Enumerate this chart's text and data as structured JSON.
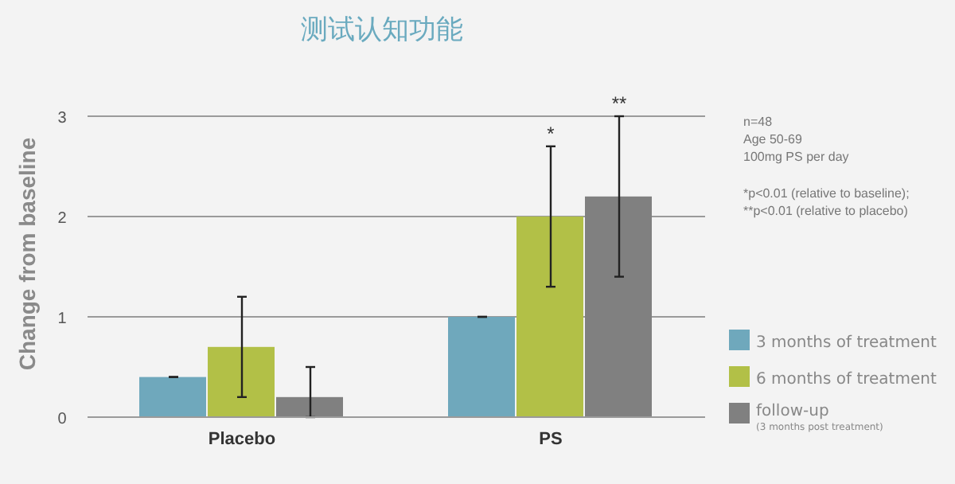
{
  "chart_data": {
    "type": "bar",
    "title": "测试认知功能",
    "ylabel": "Change from baseline",
    "categories": [
      "Placebo",
      "PS"
    ],
    "series": [
      {
        "name": "3 months of treatment",
        "color": "#6fa8bc",
        "values": [
          0.4,
          1.0
        ],
        "errors": [
          0,
          0
        ]
      },
      {
        "name": "6 months of treatment",
        "color": "#b2c047",
        "values": [
          0.7,
          2.0
        ],
        "errors": [
          [
            0.2,
            1.2
          ],
          [
            1.3,
            2.7
          ]
        ]
      },
      {
        "name": "follow-up (3 months post treatment)",
        "color": "#808080",
        "values": [
          0.2,
          2.2
        ],
        "errors": [
          [
            0,
            0.5
          ],
          [
            1.4,
            3.0
          ]
        ]
      }
    ],
    "ylim": [
      0,
      3
    ],
    "yticks": [
      0,
      1,
      2,
      3
    ],
    "grid": "y",
    "legend": "bottom right",
    "annotations": [
      "n=48",
      "Age 50-69",
      "100mg PS per day",
      "*p<0.01 (relative to baseline);",
      "**p<0.01 (relative to placebo)",
      {
        "text": "*",
        "x": "PS",
        "y": 2.7
      },
      "**"
    ]
  }
}
